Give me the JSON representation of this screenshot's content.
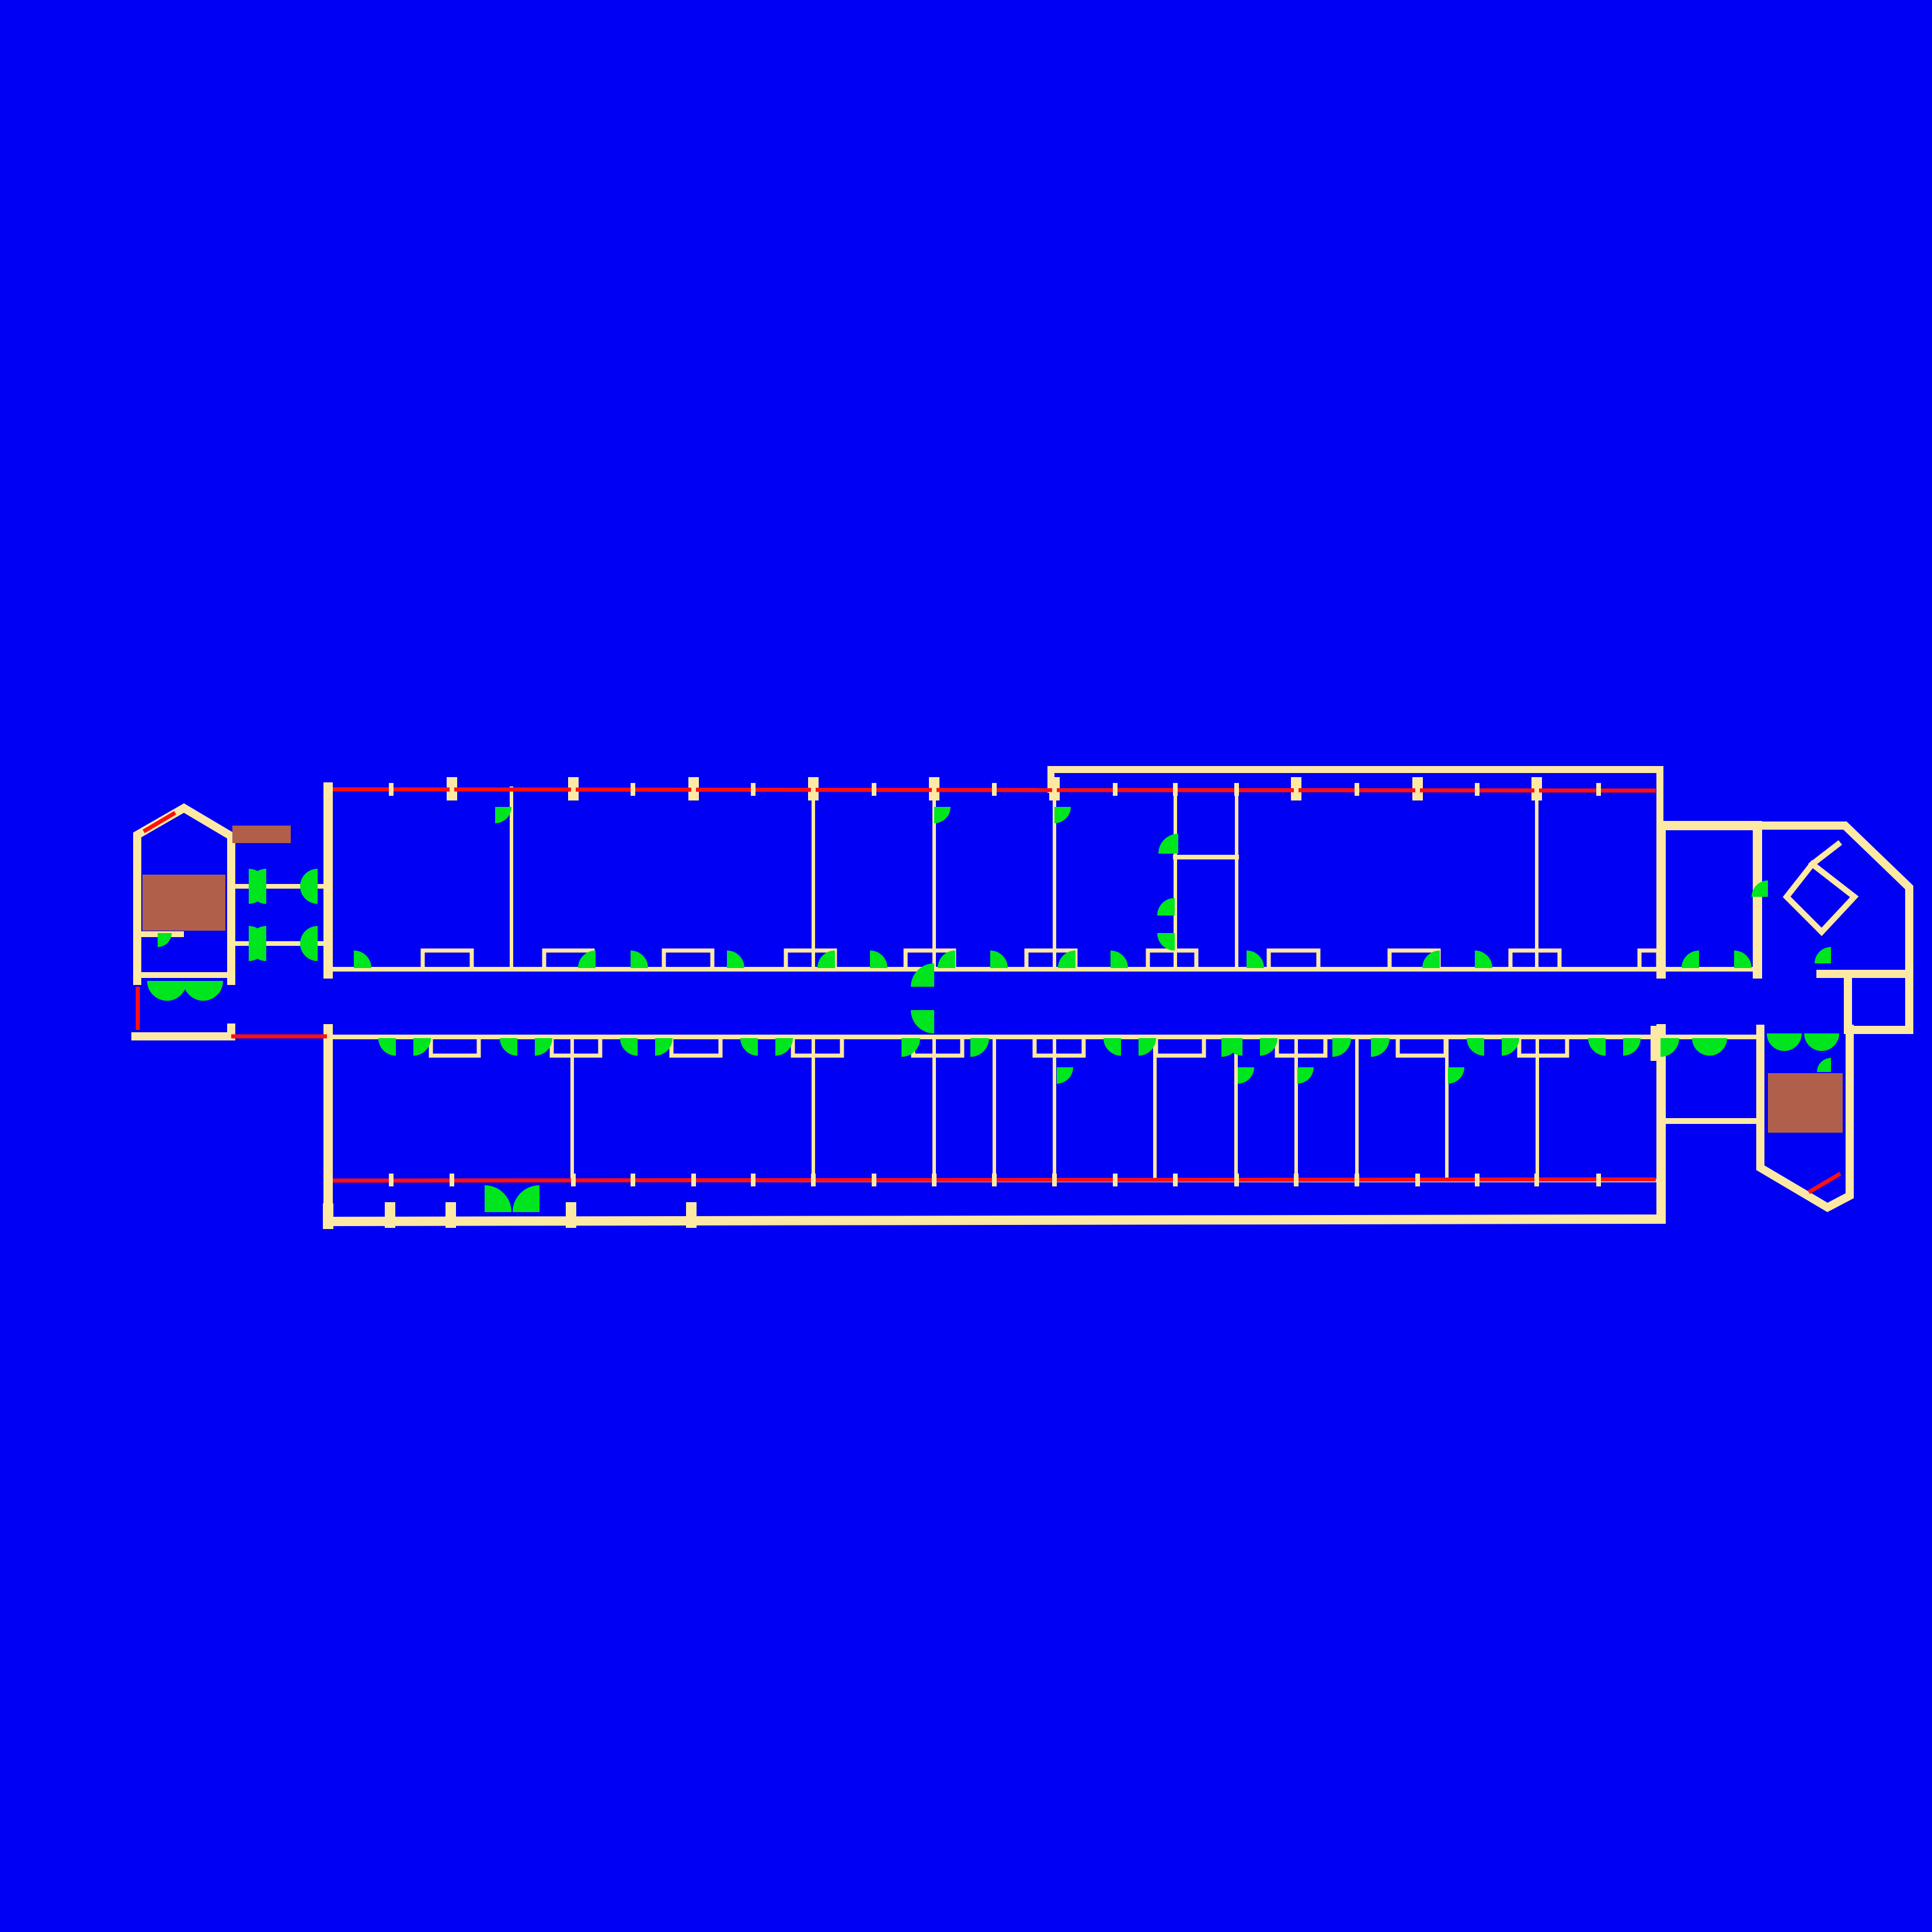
{
  "plan": {
    "background_color": "#0000f5",
    "wall_color": "#fde9a3",
    "window_color": "#ff1010",
    "door_color": "#00e61e",
    "stair_color": "#b0604a",
    "north_room_count": 8,
    "south_room_count": 11,
    "icons": {
      "door": "door-swing-arc",
      "window": "window-line",
      "stair": "stair-block"
    }
  }
}
